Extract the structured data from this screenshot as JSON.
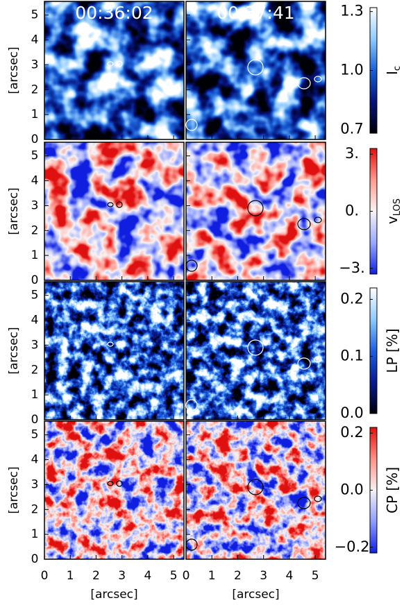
{
  "columns": [
    "00:36:02",
    "00:37:41"
  ],
  "axis_label": "[arcsec]",
  "xlim": [
    0,
    5.4
  ],
  "ylim": [
    0,
    5.55
  ],
  "xticks": [
    0,
    1,
    2,
    3,
    4,
    5
  ],
  "yticks": [
    0,
    1,
    2,
    3,
    4,
    5
  ],
  "rows": [
    {
      "label": "I",
      "label_sub": "c",
      "colormap": [
        "#000008",
        "#06127a",
        "#1a5fd6",
        "#8fcbff",
        "#ffffff"
      ],
      "clim": [
        0.68,
        1.32
      ],
      "cticks": [
        {
          "value": 1.3,
          "label": "1.3"
        },
        {
          "value": 1.0,
          "label": "1.0"
        },
        {
          "value": 0.7,
          "label": "0.7"
        }
      ]
    },
    {
      "label": "v",
      "label_sub": "LOS",
      "colormap": [
        "#1020e0",
        "#9aa8ff",
        "#f8f4f6",
        "#ff9a90",
        "#e01010"
      ],
      "clim": [
        -3.3,
        3.3
      ],
      "cticks": [
        {
          "value": 3,
          "label": "3."
        },
        {
          "value": 0,
          "label": "0."
        },
        {
          "value": -3,
          "label": "−3."
        }
      ]
    },
    {
      "label": "LP [%]",
      "colormap": [
        "#000008",
        "#0a1a90",
        "#1d5fe0",
        "#8fcbff",
        "#ffffff"
      ],
      "clim": [
        0,
        0.22
      ],
      "cticks": [
        0.2,
        0.1,
        {
          "value": 0,
          "label": "0.0"
        }
      ]
    },
    {
      "label": "CP [%]",
      "colormap": [
        "#1020e0",
        "#8f9cff",
        "#f6f2f4",
        "#ff9088",
        "#e01010"
      ],
      "clim": [
        -0.22,
        0.22
      ],
      "cticks": [
        0.2,
        {
          "value": 0,
          "label": "0.0"
        },
        {
          "value": -0.2,
          "label": "−0.2"
        }
      ]
    }
  ]
}
